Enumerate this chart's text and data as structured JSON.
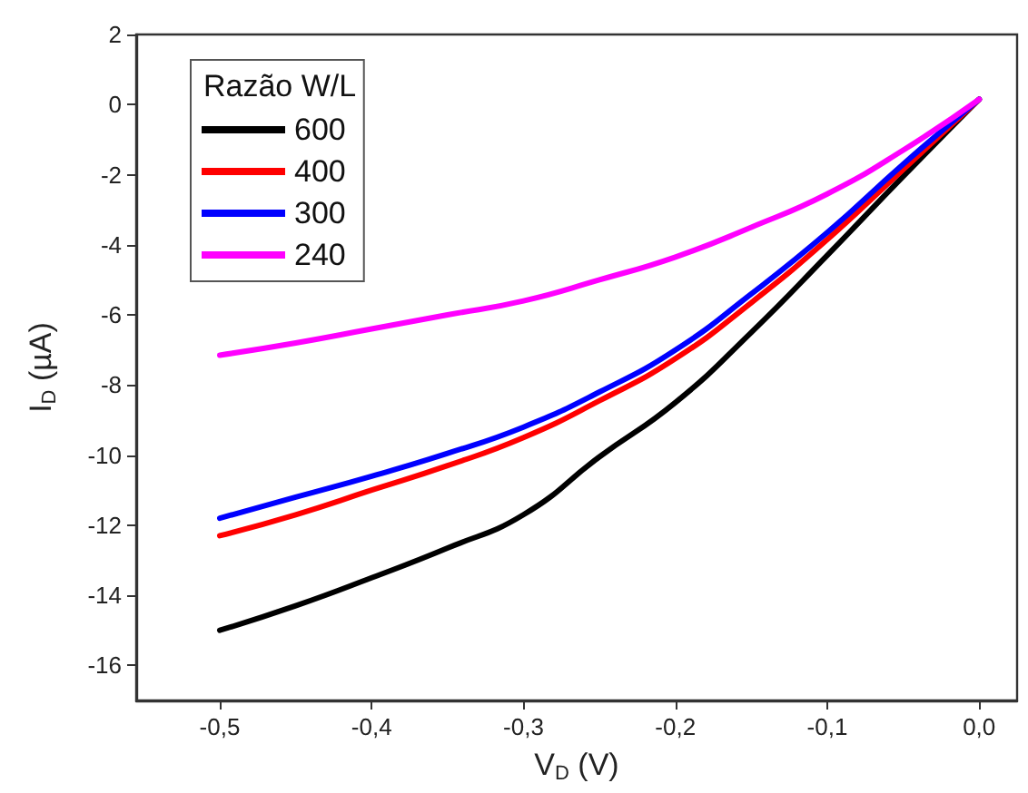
{
  "chart_data": {
    "type": "line",
    "xlabel": "V$_{D}$ (V)",
    "ylabel": "I$_{D}$ (µA)",
    "legend_title": "Razão W/L",
    "legend": "top left",
    "grid": false,
    "marker": "none",
    "line_style": "solid",
    "x": [
      -0.5,
      -0.45,
      -0.4,
      -0.35,
      -0.3,
      -0.25,
      -0.2,
      -0.15,
      -0.1,
      -0.05,
      0
    ],
    "xlim": [
      -0.555,
      0.025
    ],
    "xticks": [
      {
        "value": -0.5,
        "label": "-0,5"
      },
      {
        "value": -0.4,
        "label": "-0,4"
      },
      {
        "value": -0.3,
        "label": "-0,3"
      },
      {
        "value": -0.2,
        "label": "-0,2"
      },
      {
        "value": -0.1,
        "label": "-0,1"
      },
      {
        "value": 0,
        "label": "0,0"
      }
    ],
    "ylim": [
      -17,
      2
    ],
    "yticks": [
      -16,
      -14,
      -12,
      -10,
      -8,
      -6,
      -4,
      -2,
      0,
      2
    ],
    "series": [
      {
        "name": "600",
        "color": "#000000",
        "values": [
          -15.0,
          -14.3,
          -13.5,
          -12.65,
          -11.7,
          -10.05,
          -8.5,
          -6.5,
          -4.3,
          -2.05,
          0.15
        ]
      },
      {
        "name": "400",
        "color": "#ff0000",
        "values": [
          -12.3,
          -11.7,
          -11.0,
          -10.3,
          -9.5,
          -8.45,
          -7.25,
          -5.65,
          -3.85,
          -1.85,
          0.15
        ]
      },
      {
        "name": "300",
        "color": "#0000ff",
        "values": [
          -11.8,
          -11.2,
          -10.6,
          -9.95,
          -9.2,
          -8.2,
          -7.0,
          -5.4,
          -3.65,
          -1.7,
          0.15
        ]
      },
      {
        "name": "240",
        "color": "#ff00ff",
        "values": [
          -7.15,
          -6.8,
          -6.4,
          -6.0,
          -5.6,
          -5.0,
          -4.35,
          -3.5,
          -2.55,
          -1.3,
          0.15
        ]
      }
    ]
  }
}
